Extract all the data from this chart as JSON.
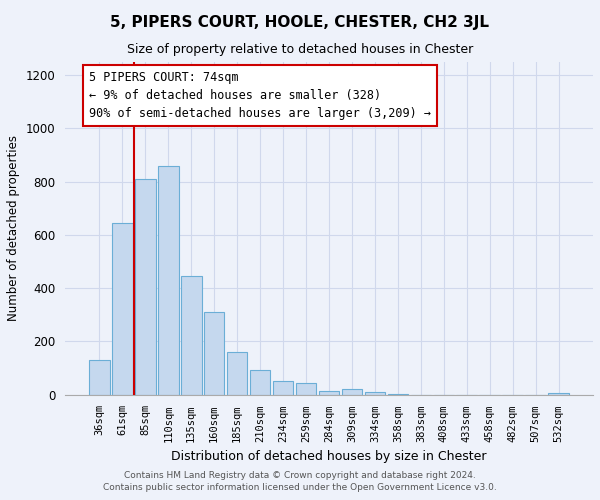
{
  "title": "5, PIPERS COURT, HOOLE, CHESTER, CH2 3JL",
  "subtitle": "Size of property relative to detached houses in Chester",
  "xlabel": "Distribution of detached houses by size in Chester",
  "ylabel": "Number of detached properties",
  "bar_labels": [
    "36sqm",
    "61sqm",
    "85sqm",
    "110sqm",
    "135sqm",
    "160sqm",
    "185sqm",
    "210sqm",
    "234sqm",
    "259sqm",
    "284sqm",
    "309sqm",
    "334sqm",
    "358sqm",
    "383sqm",
    "408sqm",
    "433sqm",
    "458sqm",
    "482sqm",
    "507sqm",
    "532sqm"
  ],
  "bar_values": [
    130,
    645,
    810,
    860,
    445,
    310,
    160,
    93,
    52,
    42,
    15,
    20,
    8,
    2,
    0,
    0,
    0,
    0,
    0,
    0,
    5
  ],
  "bar_color": "#c5d8ee",
  "bar_edge_color": "#6baed6",
  "vline_x_pos": 1.5,
  "vline_color": "#cc0000",
  "ylim": [
    0,
    1250
  ],
  "yticks": [
    0,
    200,
    400,
    600,
    800,
    1000,
    1200
  ],
  "annotation_title": "5 PIPERS COURT: 74sqm",
  "annotation_line1": "← 9% of detached houses are smaller (328)",
  "annotation_line2": "90% of semi-detached houses are larger (3,209) →",
  "annotation_box_color": "#ffffff",
  "annotation_box_edge": "#cc0000",
  "footer_line1": "Contains HM Land Registry data © Crown copyright and database right 2024.",
  "footer_line2": "Contains public sector information licensed under the Open Government Licence v3.0.",
  "background_color": "#eef2fa",
  "grid_color": "#d0d8ec",
  "title_fontsize": 11,
  "subtitle_fontsize": 9,
  "ylabel_fontsize": 8.5,
  "xlabel_fontsize": 9,
  "tick_fontsize": 7.5,
  "footer_fontsize": 6.5
}
